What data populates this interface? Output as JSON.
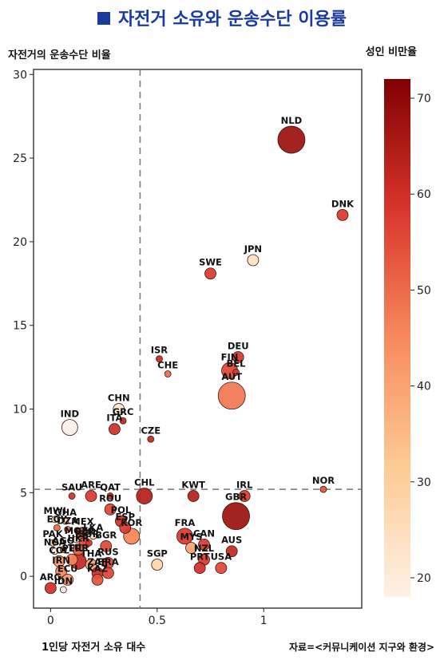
{
  "title": "자전거 소유와 운송수단 이용률",
  "ylabel": "자전거의 운송수단 비율",
  "colorbar_label": "성인 비만율",
  "xlabel": "1인당 자전거 소유 대수",
  "source": "자료=<커뮤니케이션 지구와 환경>",
  "chart_data": {
    "type": "scatter",
    "title": "자전거 소유와 운송수단 이용률",
    "xlabel": "1인당 자전거 소유 대수",
    "ylabel": "자전거의 운송수단 비율",
    "xlim": [
      -0.08,
      1.46
    ],
    "ylim": [
      -1.9,
      30.3
    ],
    "xticks": [
      0,
      0.5,
      1
    ],
    "yticks": [
      0,
      5,
      10,
      15,
      20,
      25,
      30
    ],
    "reference_lines": {
      "x": 0.42,
      "y": 5.2
    },
    "colorbar": {
      "label": "성인 비만율",
      "min": 18,
      "max": 72,
      "ticks": [
        20,
        30,
        40,
        50,
        60,
        70
      ]
    },
    "size_encoding": "bubble area",
    "grid": false,
    "points": [
      {
        "label": "NLD",
        "x": 1.13,
        "y": 26.1,
        "color_value": 68,
        "size": "large"
      },
      {
        "label": "DNK",
        "x": 1.37,
        "y": 21.6,
        "color_value": 58,
        "size": "small"
      },
      {
        "label": "JPN",
        "x": 0.95,
        "y": 18.9,
        "color_value": 24,
        "size": "small"
      },
      {
        "label": "SWE",
        "x": 0.75,
        "y": 18.1,
        "color_value": 58,
        "size": "small"
      },
      {
        "label": "ISR",
        "x": 0.51,
        "y": 13.0,
        "color_value": 62,
        "size": "tiny"
      },
      {
        "label": "DEU",
        "x": 0.88,
        "y": 13.1,
        "color_value": 58,
        "size": "small"
      },
      {
        "label": "FIN",
        "x": 0.84,
        "y": 12.3,
        "color_value": 56,
        "size": "medium"
      },
      {
        "label": "CHE",
        "x": 0.55,
        "y": 12.1,
        "color_value": 50,
        "size": "tiny"
      },
      {
        "label": "BEL",
        "x": 0.87,
        "y": 12.2,
        "color_value": 58,
        "size": "tiny"
      },
      {
        "label": "AUT",
        "x": 0.85,
        "y": 10.8,
        "color_value": 48,
        "size": "large"
      },
      {
        "label": "CHN",
        "x": 0.32,
        "y": 10.0,
        "color_value": 22,
        "size": "small"
      },
      {
        "label": "GRC",
        "x": 0.34,
        "y": 9.3,
        "color_value": 62,
        "size": "tiny"
      },
      {
        "label": "IND",
        "x": 0.09,
        "y": 8.9,
        "color_value": 18,
        "size": "medium"
      },
      {
        "label": "ITA",
        "x": 0.3,
        "y": 8.8,
        "color_value": 60,
        "size": "small"
      },
      {
        "label": "CZE",
        "x": 0.47,
        "y": 8.2,
        "color_value": 62,
        "size": "tiny"
      },
      {
        "label": "NOR",
        "x": 1.28,
        "y": 5.2,
        "color_value": 54,
        "size": "tiny"
      },
      {
        "label": "SAU",
        "x": 0.1,
        "y": 4.8,
        "color_value": 60,
        "size": "tiny"
      },
      {
        "label": "ARE",
        "x": 0.19,
        "y": 4.8,
        "color_value": 58,
        "size": "small"
      },
      {
        "label": "QAT",
        "x": 0.28,
        "y": 4.8,
        "color_value": 62,
        "size": "tiny"
      },
      {
        "label": "CHL",
        "x": 0.44,
        "y": 4.8,
        "color_value": 64,
        "size": "medium"
      },
      {
        "label": "KWT",
        "x": 0.67,
        "y": 4.8,
        "color_value": 64,
        "size": "small"
      },
      {
        "label": "IRL",
        "x": 0.91,
        "y": 4.8,
        "color_value": 58,
        "size": "small"
      },
      {
        "label": "GBR",
        "x": 0.87,
        "y": 3.6,
        "color_value": 68,
        "size": "large"
      },
      {
        "label": "MWI",
        "x": 0.02,
        "y": 3.4,
        "color_value": 22,
        "size": "tiny"
      },
      {
        "label": "GHA",
        "x": 0.07,
        "y": 3.3,
        "color_value": 30,
        "size": "tiny"
      },
      {
        "label": "ROU",
        "x": 0.28,
        "y": 4.0,
        "color_value": 56,
        "size": "small"
      },
      {
        "label": "EGY",
        "x": 0.03,
        "y": 2.9,
        "color_value": 50,
        "size": "tiny"
      },
      {
        "label": "DZA",
        "x": 0.08,
        "y": 2.8,
        "color_value": 50,
        "size": "tiny"
      },
      {
        "label": "POL",
        "x": 0.33,
        "y": 3.3,
        "color_value": 60,
        "size": "small"
      },
      {
        "label": "MEX",
        "x": 0.15,
        "y": 2.6,
        "color_value": 54,
        "size": "small"
      },
      {
        "label": "LKA",
        "x": 0.2,
        "y": 2.4,
        "color_value": 24,
        "size": "tiny"
      },
      {
        "label": "ESP",
        "x": 0.35,
        "y": 2.9,
        "color_value": 58,
        "size": "small"
      },
      {
        "label": "MOZ",
        "x": 0.12,
        "y": 2.2,
        "color_value": 22,
        "size": "tiny"
      },
      {
        "label": "PAK",
        "x": 0.01,
        "y": 2.0,
        "color_value": 30,
        "size": "tiny"
      },
      {
        "label": "BLR",
        "x": 0.16,
        "y": 2.0,
        "color_value": 56,
        "size": "small"
      },
      {
        "label": "SUR",
        "x": 0.18,
        "y": 2.0,
        "color_value": 58,
        "size": "tiny"
      },
      {
        "label": "KOR",
        "x": 0.38,
        "y": 2.4,
        "color_value": 46,
        "size": "medium"
      },
      {
        "label": "FRA",
        "x": 0.63,
        "y": 2.4,
        "color_value": 58,
        "size": "medium"
      },
      {
        "label": "AGO",
        "x": 0.06,
        "y": 1.6,
        "color_value": 36,
        "size": "tiny"
      },
      {
        "label": "UKR",
        "x": 0.13,
        "y": 1.6,
        "color_value": 52,
        "size": "small"
      },
      {
        "label": "CAN",
        "x": 0.72,
        "y": 1.9,
        "color_value": 58,
        "size": "small"
      },
      {
        "label": "BGR",
        "x": 0.26,
        "y": 1.8,
        "color_value": 56,
        "size": "small"
      },
      {
        "label": "MYS",
        "x": 0.66,
        "y": 1.7,
        "color_value": 40,
        "size": "small"
      },
      {
        "label": "NGA",
        "x": 0.02,
        "y": 1.5,
        "color_value": 18,
        "size": "tiny"
      },
      {
        "label": "AUS",
        "x": 0.85,
        "y": 1.5,
        "color_value": 62,
        "size": "small"
      },
      {
        "label": "COL",
        "x": 0.04,
        "y": 0.9,
        "color_value": 42,
        "size": "small"
      },
      {
        "label": "PER",
        "x": 0.1,
        "y": 1.0,
        "color_value": 46,
        "size": "small"
      },
      {
        "label": "TUR",
        "x": 0.13,
        "y": 0.9,
        "color_value": 62,
        "size": "medium"
      },
      {
        "label": "SGP",
        "x": 0.5,
        "y": 0.7,
        "color_value": 28,
        "size": "small"
      },
      {
        "label": "NZL",
        "x": 0.72,
        "y": 1.0,
        "color_value": 58,
        "size": "small"
      },
      {
        "label": "PRT",
        "x": 0.7,
        "y": 0.5,
        "color_value": 60,
        "size": "small"
      },
      {
        "label": "USA",
        "x": 0.8,
        "y": 0.5,
        "color_value": 56,
        "size": "small"
      },
      {
        "label": "THA",
        "x": 0.19,
        "y": 0.7,
        "color_value": 40,
        "size": "small"
      },
      {
        "label": "RUS",
        "x": 0.27,
        "y": 0.8,
        "color_value": 56,
        "size": "small"
      },
      {
        "label": "IRN",
        "x": 0.05,
        "y": 0.3,
        "color_value": 46,
        "size": "small"
      },
      {
        "label": "ZAF",
        "x": 0.22,
        "y": 0.2,
        "color_value": 60,
        "size": "small"
      },
      {
        "label": "BRA",
        "x": 0.27,
        "y": 0.2,
        "color_value": 56,
        "size": "small"
      },
      {
        "label": "KAZ",
        "x": 0.22,
        "y": -0.2,
        "color_value": 54,
        "size": "small"
      },
      {
        "label": "ECU",
        "x": 0.08,
        "y": -0.2,
        "color_value": 42,
        "size": "small"
      },
      {
        "label": "IDN",
        "x": 0.06,
        "y": -0.8,
        "color_value": 18,
        "size": "tiny"
      },
      {
        "label": "ARG",
        "x": 0.0,
        "y": -0.7,
        "color_value": 60,
        "size": "small"
      }
    ]
  }
}
